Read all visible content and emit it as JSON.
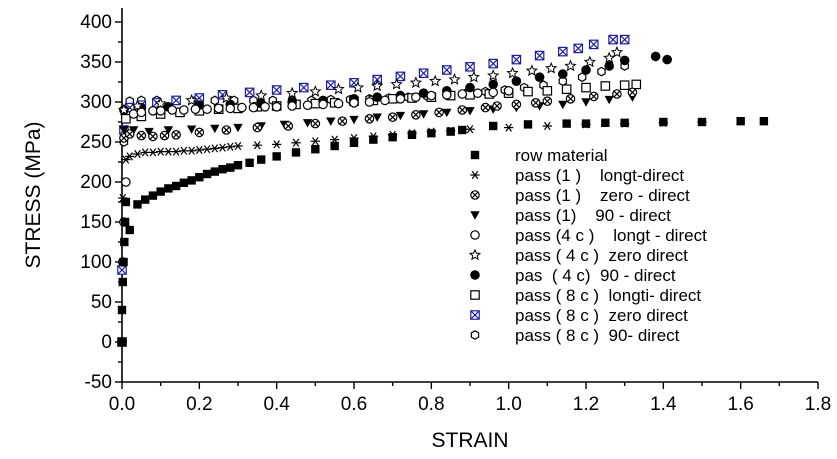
{
  "chart_data": {
    "type": "scatter",
    "title": "",
    "xlabel": "STRAIN",
    "ylabel": "STRESS  (MPa)",
    "xlim": [
      0,
      1.8
    ],
    "ylim": [
      -50,
      420
    ],
    "x_ticks": [
      "0.0",
      "0.2",
      "0.4",
      "0.6",
      "0.8",
      "1.0",
      "1.2",
      "1.4",
      "1.6",
      "1.8"
    ],
    "y_ticks": [
      "-50",
      "0",
      "50",
      "100",
      "150",
      "200",
      "250",
      "300",
      "350",
      "400"
    ],
    "grid": false,
    "legend_position": "center-right",
    "series": [
      {
        "name": "row material",
        "marker": "filled-square",
        "color": "#000000",
        "x": [
          0.0,
          0.0,
          0.002,
          0.004,
          0.006,
          0.008,
          0.01,
          0.02,
          0.04,
          0.06,
          0.08,
          0.1,
          0.12,
          0.14,
          0.16,
          0.18,
          0.2,
          0.22,
          0.24,
          0.26,
          0.28,
          0.3,
          0.33,
          0.36,
          0.4,
          0.45,
          0.5,
          0.55,
          0.6,
          0.65,
          0.7,
          0.75,
          0.8,
          0.85,
          0.88,
          0.96,
          1.05,
          1.15,
          1.2,
          1.25,
          1.3,
          1.4,
          1.5,
          1.6,
          1.66
        ],
        "y": [
          0,
          40,
          75,
          100,
          125,
          150,
          175,
          140,
          172,
          178,
          183,
          188,
          192,
          195,
          199,
          202,
          206,
          210,
          213,
          216,
          218,
          221,
          224,
          228,
          232,
          237,
          241,
          245,
          249,
          253,
          256,
          259,
          261,
          263,
          265,
          270,
          272,
          273,
          273,
          274,
          274,
          275,
          275,
          276,
          276
        ]
      },
      {
        "name": "pass (1 )    longt-direct",
        "marker": "asterisk",
        "color": "#000000",
        "x": [
          0.0,
          0.002,
          0.01,
          0.02,
          0.04,
          0.06,
          0.08,
          0.1,
          0.12,
          0.14,
          0.16,
          0.18,
          0.2,
          0.22,
          0.24,
          0.26,
          0.28,
          0.3,
          0.35,
          0.4,
          0.45,
          0.5,
          0.55,
          0.6,
          0.65,
          0.7,
          0.75,
          0.8,
          0.85,
          0.9,
          1.0,
          1.1,
          1.2,
          1.3,
          1.4,
          1.5
        ],
        "y": [
          0,
          180,
          228,
          232,
          235,
          237,
          237,
          238,
          238,
          238,
          239,
          239,
          240,
          241,
          242,
          243,
          244,
          245,
          246,
          247,
          249,
          251,
          253,
          255,
          257,
          259,
          261,
          263,
          264,
          266,
          268,
          270,
          272,
          273,
          274,
          275
        ]
      },
      {
        "name": "pass (1 )    zero - direct",
        "marker": "circle-x",
        "color": "#000000",
        "x": [
          0.005,
          0.02,
          0.05,
          0.08,
          0.11,
          0.14,
          0.2,
          0.27,
          0.35,
          0.43,
          0.5,
          0.57,
          0.64,
          0.7,
          0.76,
          0.82,
          0.88,
          0.94,
          0.97,
          1.02,
          1.07,
          1.1,
          1.16,
          1.22,
          1.28,
          1.32
        ],
        "y": [
          255,
          260,
          258,
          257,
          258,
          259,
          262,
          265,
          268,
          270,
          273,
          276,
          279,
          281,
          284,
          287,
          290,
          293,
          295,
          297,
          299,
          301,
          304,
          307,
          310,
          312
        ]
      },
      {
        "name": "pass (1)    90 - direct",
        "marker": "filled-triangle-down",
        "color": "#000000",
        "x": [
          0.0,
          0.005,
          0.03,
          0.07,
          0.12,
          0.18,
          0.24,
          0.3,
          0.36,
          0.42,
          0.48,
          0.54,
          0.6,
          0.66,
          0.72,
          0.78,
          0.84,
          0.9,
          0.96,
          1.02,
          1.08,
          1.14,
          1.2,
          1.26,
          1.32
        ],
        "y": [
          0,
          265,
          265,
          263,
          265,
          266,
          267,
          268,
          270,
          272,
          274,
          276,
          278,
          281,
          283,
          285,
          287,
          289,
          291,
          293,
          295,
          297,
          300,
          303,
          306
        ]
      },
      {
        "name": "pass (4 c )    longt - direct",
        "marker": "open-circle",
        "color": "#000000",
        "x": [
          0.0,
          0.002,
          0.005,
          0.01,
          0.03,
          0.05,
          0.08,
          0.1,
          0.13,
          0.16,
          0.19,
          0.22,
          0.25,
          0.28,
          0.31,
          0.34,
          0.37,
          0.4,
          0.44,
          0.48,
          0.52,
          0.56,
          0.6,
          0.64,
          0.68,
          0.72,
          0.76,
          0.8,
          0.84,
          0.88,
          0.92,
          0.96,
          1.0
        ],
        "y": [
          0,
          100,
          150,
          200,
          285,
          287,
          289,
          289,
          290,
          290,
          291,
          291,
          292,
          292,
          293,
          293,
          294,
          294,
          295,
          296,
          297,
          298,
          299,
          300,
          302,
          304,
          306,
          308,
          309,
          310,
          311,
          312,
          314
        ]
      },
      {
        "name": "pass ( 4 c )  zero direct",
        "marker": "star",
        "color": "#000000",
        "x": [
          0.005,
          0.04,
          0.1,
          0.18,
          0.27,
          0.36,
          0.44,
          0.5,
          0.56,
          0.61,
          0.66,
          0.71,
          0.76,
          0.81,
          0.86,
          0.91,
          0.96,
          1.01,
          1.06,
          1.11,
          1.16,
          1.21,
          1.26,
          1.28
        ],
        "y": [
          290,
          295,
          298,
          302,
          305,
          308,
          311,
          313,
          316,
          318,
          320,
          322,
          324,
          326,
          328,
          331,
          333,
          336,
          339,
          342,
          345,
          350,
          355,
          362
        ]
      },
      {
        "name": "pas  ( 4 c)  90 - direct",
        "marker": "filled-circle",
        "color": "#000000",
        "x": [
          0.005,
          0.05,
          0.12,
          0.2,
          0.28,
          0.36,
          0.44,
          0.52,
          0.6,
          0.66,
          0.72,
          0.78,
          0.84,
          0.9,
          0.96,
          1.02,
          1.08,
          1.14,
          1.2,
          1.26,
          1.3,
          1.38,
          1.41
        ],
        "y": [
          290,
          293,
          294,
          296,
          297,
          298,
          300,
          302,
          304,
          306,
          308,
          311,
          314,
          318,
          322,
          326,
          331,
          335,
          340,
          345,
          352,
          357,
          353
        ]
      },
      {
        "name": "pass ( 8 c )  longti- direct",
        "marker": "open-square",
        "color": "#000000",
        "x": [
          0.0,
          0.01,
          0.05,
          0.1,
          0.15,
          0.2,
          0.25,
          0.3,
          0.35,
          0.4,
          0.45,
          0.5,
          0.55,
          0.6,
          0.65,
          0.7,
          0.75,
          0.8,
          0.85,
          0.9,
          0.95,
          1.0,
          1.05,
          1.1,
          1.15,
          1.2,
          1.25,
          1.3,
          1.33
        ],
        "y": [
          0,
          279,
          282,
          285,
          287,
          289,
          291,
          292,
          294,
          295,
          297,
          298,
          299,
          301,
          302,
          304,
          305,
          306,
          308,
          309,
          310,
          311,
          313,
          314,
          316,
          318,
          320,
          321,
          322
        ]
      },
      {
        "name": "pass ( 8 c )  zero direct",
        "marker": "square-x",
        "color": "#1f1f9e",
        "x": [
          0.0,
          0.005,
          0.02,
          0.05,
          0.09,
          0.14,
          0.2,
          0.26,
          0.33,
          0.4,
          0.47,
          0.54,
          0.6,
          0.66,
          0.72,
          0.78,
          0.84,
          0.9,
          0.96,
          1.02,
          1.08,
          1.14,
          1.18,
          1.22,
          1.27,
          1.3
        ],
        "y": [
          90,
          265,
          293,
          296,
          299,
          302,
          305,
          309,
          312,
          315,
          318,
          321,
          324,
          328,
          332,
          336,
          340,
          344,
          348,
          353,
          358,
          363,
          367,
          372,
          378,
          378
        ]
      },
      {
        "name": "pass ( 8 c )  90- direct",
        "marker": "open-hexagon",
        "color": "#000000",
        "x": [
          0.0,
          0.005,
          0.02,
          0.05,
          0.09,
          0.14,
          0.19,
          0.24,
          0.29,
          0.34,
          0.39,
          0.44,
          0.49,
          0.54,
          0.59,
          0.64,
          0.69,
          0.74,
          0.79,
          0.84,
          0.89,
          0.94,
          0.99,
          1.04,
          1.09,
          1.14,
          1.19,
          1.24,
          1.3
        ],
        "y": [
          0,
          250,
          301,
          302,
          302,
          302,
          302,
          302,
          302,
          302,
          302,
          302,
          302,
          303,
          303,
          304,
          305,
          306,
          307,
          309,
          311,
          313,
          315,
          318,
          321,
          326,
          331,
          338,
          345
        ]
      }
    ]
  }
}
